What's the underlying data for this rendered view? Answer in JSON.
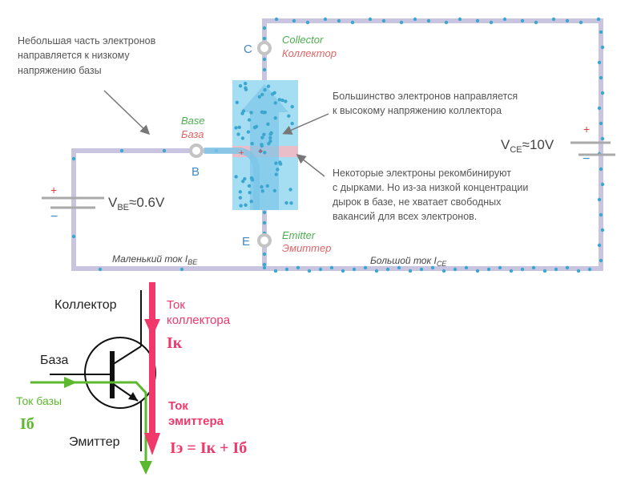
{
  "circuit": {
    "note_base": [
      "Небольшая часть электронов",
      "направляется к низкому",
      "напряжению базы"
    ],
    "note_collector": [
      "Большинство электронов направляется",
      "к высокому напряжению коллектора"
    ],
    "note_recombine": [
      "Некоторые   электроны   рекомбинируют",
      "с дырками. Но из-за низкой концентрации",
      "дырок  в  базе,  не  хватает  свободных",
      "вакансий  для  всех  электронов."
    ],
    "collector": {
      "letter": "C",
      "en": "Collector",
      "ru": "Коллектор"
    },
    "base": {
      "letter": "B",
      "en": "Base",
      "ru": "База"
    },
    "emitter": {
      "letter": "E",
      "en": "Emitter",
      "ru": "Эмиттер"
    },
    "vbe": {
      "main": "V",
      "sub": "BE",
      "value": "≈0.6V"
    },
    "vce": {
      "main": "V",
      "sub": "CE",
      "value": "≈10V"
    },
    "small_current": {
      "text": "Маленький ток I",
      "sub": "BE"
    },
    "large_current": {
      "text": "Большой ток I",
      "sub": "CE"
    },
    "plus": "+",
    "minus": "−"
  },
  "symbol": {
    "collector_label": "Коллектор",
    "base_label": "База",
    "emitter_label": "Эмиттер",
    "collector_current": [
      "Ток",
      "коллектора"
    ],
    "collector_current_symbol": "Iк",
    "base_current": "Ток базы",
    "base_current_symbol": "Iб",
    "emitter_current": [
      "Ток",
      "эмиттера"
    ],
    "emitter_formula": "Iэ = Iк + Iб"
  },
  "colors": {
    "wire": "#c9c5e0",
    "electron": "#3ba7cf",
    "block": "#8fd6f0",
    "label_en": "#4caf50",
    "label_ru": "#e06666",
    "terminal_letter": "#3f88c5",
    "current_red": "#f0386b",
    "current_green": "#5cb82e"
  }
}
